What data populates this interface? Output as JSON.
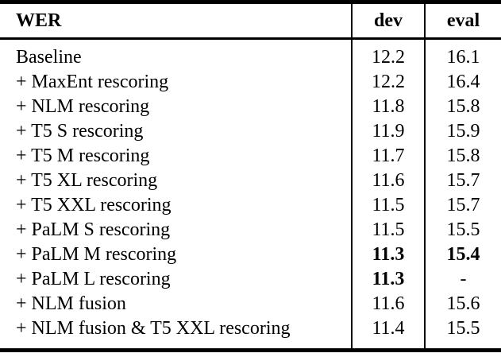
{
  "table": {
    "headers": [
      {
        "label": "WER"
      },
      {
        "label": "dev"
      },
      {
        "label": "eval"
      }
    ],
    "rows": [
      {
        "label": "Baseline",
        "dev": "12.2",
        "eval": "16.1",
        "dev_bold": false,
        "eval_bold": false
      },
      {
        "label": "+ MaxEnt rescoring",
        "dev": "12.2",
        "eval": "16.4",
        "dev_bold": false,
        "eval_bold": false
      },
      {
        "label": "+ NLM rescoring",
        "dev": "11.8",
        "eval": "15.8",
        "dev_bold": false,
        "eval_bold": false
      },
      {
        "label": "+ T5 S rescoring",
        "dev": "11.9",
        "eval": "15.9",
        "dev_bold": false,
        "eval_bold": false
      },
      {
        "label": "+ T5 M rescoring",
        "dev": "11.7",
        "eval": "15.8",
        "dev_bold": false,
        "eval_bold": false
      },
      {
        "label": "+ T5 XL rescoring",
        "dev": "11.6",
        "eval": "15.7",
        "dev_bold": false,
        "eval_bold": false
      },
      {
        "label": "+ T5 XXL rescoring",
        "dev": "11.5",
        "eval": "15.7",
        "dev_bold": false,
        "eval_bold": false
      },
      {
        "label": "+ PaLM S rescoring",
        "dev": "11.5",
        "eval": "15.5",
        "dev_bold": false,
        "eval_bold": false
      },
      {
        "label": "+ PaLM M rescoring",
        "dev": "11.3",
        "eval": "15.4",
        "dev_bold": true,
        "eval_bold": true
      },
      {
        "label": "+ PaLM L rescoring",
        "dev": "11.3",
        "eval": "-",
        "dev_bold": true,
        "eval_bold": false
      },
      {
        "label": "+ NLM fusion",
        "dev": "11.6",
        "eval": "15.6",
        "dev_bold": false,
        "eval_bold": false
      },
      {
        "label": "+ NLM fusion & T5 XXL rescoring",
        "dev": "11.4",
        "eval": "15.5",
        "dev_bold": false,
        "eval_bold": false
      }
    ]
  },
  "colors": {
    "text": "#000000",
    "background": "#ffffff",
    "rule": "#000000"
  }
}
